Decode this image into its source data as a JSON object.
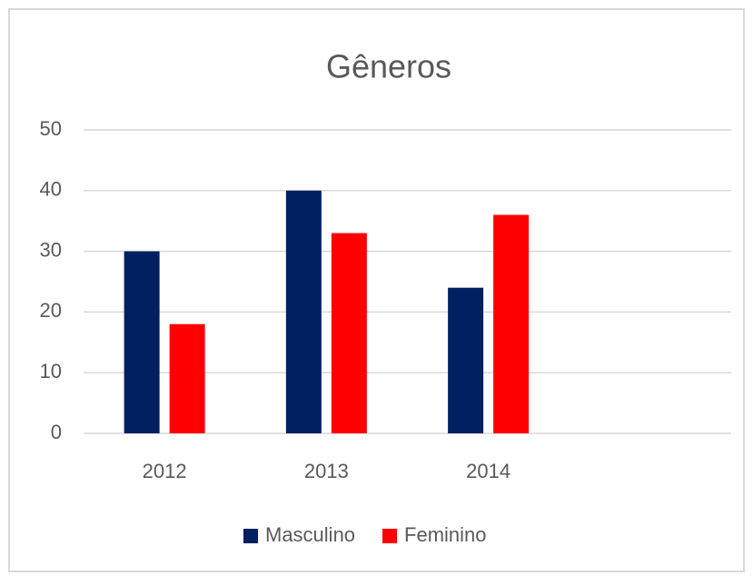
{
  "chart_data": {
    "type": "bar",
    "title": "Gêneros",
    "categories": [
      "2012",
      "2013",
      "2014",
      null
    ],
    "series": [
      {
        "name": "Masculino",
        "color": "#002060",
        "values": [
          30,
          40,
          24,
          null
        ]
      },
      {
        "name": "Feminino",
        "color": "#ff0000",
        "values": [
          18,
          33,
          36,
          null
        ]
      }
    ],
    "ylim": [
      0,
      50
    ],
    "yticks": [
      0,
      10,
      20,
      30,
      40,
      50
    ],
    "grid": true,
    "legend": "bottom"
  }
}
